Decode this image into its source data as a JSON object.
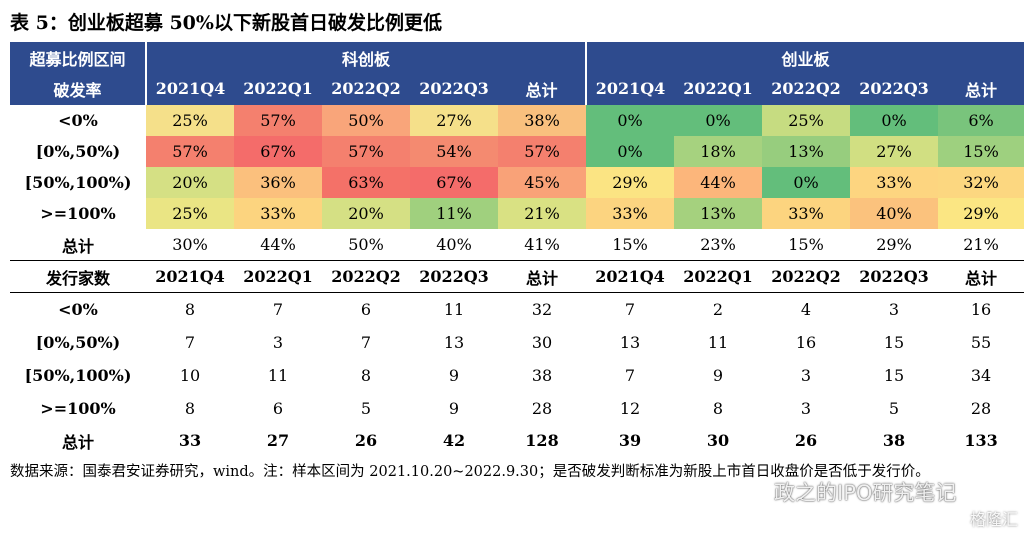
{
  "title": "表 5：创业板超募 50%以下新股首日破发比例更低",
  "header": {
    "corner_line1": "超募比例区间",
    "corner_line2": "破发率",
    "board_a": "科创板",
    "board_b": "创业板",
    "columns": [
      "2021Q4",
      "2022Q1",
      "2022Q2",
      "2022Q3",
      "总计",
      "2021Q4",
      "2022Q1",
      "2022Q2",
      "2022Q3",
      "总计"
    ]
  },
  "pct_rows": [
    {
      "label": "<0%",
      "values": [
        "25%",
        "57%",
        "50%",
        "27%",
        "38%",
        "0%",
        "0%",
        "25%",
        "0%",
        "6%"
      ],
      "colors": [
        "#f5e08a",
        "#f4806e",
        "#f9a57a",
        "#f5e08a",
        "#f9c07e",
        "#63be7b",
        "#63be7b",
        "#c6dc81",
        "#63be7b",
        "#79c47c"
      ]
    },
    {
      "label": "[0%,50%)",
      "values": [
        "57%",
        "67%",
        "57%",
        "54%",
        "57%",
        "0%",
        "18%",
        "13%",
        "27%",
        "15%"
      ],
      "colors": [
        "#f4806e",
        "#f46c6a",
        "#f4806e",
        "#f48a70",
        "#f4806e",
        "#63be7b",
        "#a6d27f",
        "#97cd7e",
        "#d1df82",
        "#9ed07f"
      ]
    },
    {
      "label": "[50%,100%)",
      "values": [
        "20%",
        "36%",
        "63%",
        "67%",
        "45%",
        "29%",
        "44%",
        "0%",
        "33%",
        "32%"
      ],
      "colors": [
        "#d5e084",
        "#fbc07d",
        "#f47168",
        "#f46c6a",
        "#f9a278",
        "#fbe483",
        "#fcb67b",
        "#63be7b",
        "#fdd580",
        "#fcd780"
      ],
      "bold_values": [
        false,
        false,
        false,
        false,
        false,
        false,
        false,
        false,
        false,
        false
      ]
    },
    {
      "label": ">=100%",
      "values": [
        "25%",
        "33%",
        "20%",
        "11%",
        "21%",
        "33%",
        "13%",
        "33%",
        "40%",
        "29%"
      ],
      "colors": [
        "#eae584",
        "#fcd47f",
        "#d5e084",
        "#a0d07e",
        "#d9e183",
        "#fcd480",
        "#a5d17e",
        "#fcd47f",
        "#fbc27d",
        "#fbe683"
      ]
    }
  ],
  "pct_total": {
    "label": "总计",
    "values": [
      "30%",
      "44%",
      "50%",
      "40%",
      "41%",
      "15%",
      "23%",
      "15%",
      "29%",
      "21%"
    ]
  },
  "count_header": {
    "label": "发行家数",
    "columns": [
      "2021Q4",
      "2022Q1",
      "2022Q2",
      "2022Q3",
      "总计",
      "2021Q4",
      "2022Q1",
      "2022Q2",
      "2022Q3",
      "总计"
    ]
  },
  "count_rows": [
    {
      "label": "<0%",
      "values": [
        "8",
        "7",
        "6",
        "11",
        "32",
        "7",
        "2",
        "4",
        "3",
        "16"
      ]
    },
    {
      "label": "[0%,50%)",
      "values": [
        "7",
        "3",
        "7",
        "13",
        "30",
        "13",
        "11",
        "16",
        "15",
        "55"
      ]
    },
    {
      "label": "[50%,100%)",
      "values": [
        "10",
        "11",
        "8",
        "9",
        "38",
        "7",
        "9",
        "3",
        "15",
        "34"
      ]
    },
    {
      "label": ">=100%",
      "values": [
        "8",
        "6",
        "5",
        "9",
        "28",
        "12",
        "8",
        "3",
        "5",
        "28"
      ]
    }
  ],
  "count_total": {
    "label": "总计",
    "values": [
      "33",
      "27",
      "26",
      "42",
      "128",
      "39",
      "30",
      "26",
      "38",
      "133"
    ]
  },
  "footer": "数据来源：国泰君安证券研究，wind。注：样本区间为 2021.10.20~2022.9.30；是否破发判断标准为新股上市首日收盘价是否低于发行价。",
  "watermark": "政之的IPO研究笔记",
  "watermark2": "格隆汇"
}
